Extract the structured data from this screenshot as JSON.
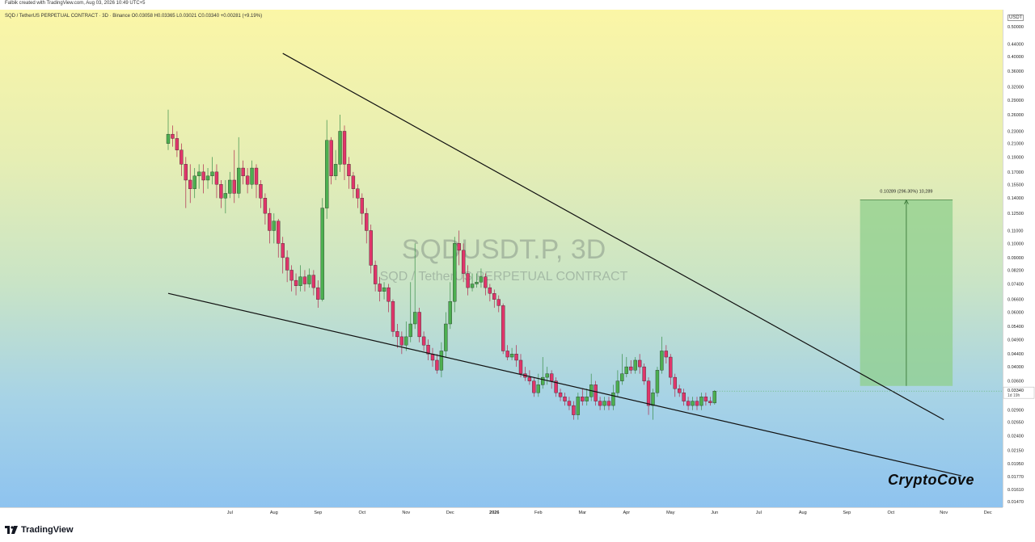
{
  "header": {
    "credit": "Falbik created with TradingView.com, Aug 03, 2026 10:49 UTC+5",
    "symbol_line": "SQD / TetherUS PERPETUAL CONTRACT · 3D · Binance  O0.03058  H0.03365  L0.03021  C0.03340  +0.00281 (+9.19%)"
  },
  "watermark": {
    "ticker": "SQDUSDT.P, 3D",
    "description": "SQD / TetherUS PERPETUAL CONTRACT"
  },
  "brand_text": "CryptoCove",
  "footer": {
    "logo_text": "TradingView"
  },
  "colors": {
    "up": "#26a69a",
    "down": "#e91e63",
    "up_body": "#4caf50",
    "down_body": "#e0356a",
    "target_box": "#8fcf8c"
  },
  "chart_data": {
    "type": "candlestick",
    "scale": "log",
    "currency": "USDT",
    "price_ticks": [
      0.5,
      0.44,
      0.4,
      0.36,
      0.32,
      0.29,
      0.26,
      0.23,
      0.21,
      0.19,
      0.17,
      0.155,
      0.14,
      0.125,
      0.11,
      0.1,
      0.09,
      0.082,
      0.074,
      0.066,
      0.06,
      0.054,
      0.049,
      0.044,
      0.04,
      0.036,
      0.0326,
      0.029,
      0.0265,
      0.024,
      0.0215,
      0.0195,
      0.0177,
      0.0161,
      0.0147
    ],
    "price_tick_labels": [
      "0.50000",
      "0.44000",
      "0.40000",
      "0.36000",
      "0.32000",
      "0.29000",
      "0.26000",
      "0.23000",
      "0.21000",
      "0.19000",
      "0.17000",
      "0.15500",
      "0.14000",
      "0.12500",
      "0.11000",
      "0.10000",
      "0.09000",
      "0.08200",
      "0.07400",
      "0.06600",
      "0.06000",
      "0.05400",
      "0.04900",
      "0.04400",
      "0.04000",
      "0.03600",
      "0.03260",
      "0.02900",
      "0.02650",
      "0.02400",
      "0.02150",
      "0.01950",
      "0.01770",
      "0.01610",
      "0.01470"
    ],
    "time_ticks": [
      {
        "label": "Jul",
        "i": 14
      },
      {
        "label": "Aug",
        "i": 24
      },
      {
        "label": "Sep",
        "i": 34
      },
      {
        "label": "Oct",
        "i": 44
      },
      {
        "label": "Nov",
        "i": 54
      },
      {
        "label": "Dec",
        "i": 64
      },
      {
        "label": "2026",
        "i": 74
      },
      {
        "label": "Feb",
        "i": 84
      },
      {
        "label": "Mar",
        "i": 94
      },
      {
        "label": "Apr",
        "i": 104
      },
      {
        "label": "May",
        "i": 114
      },
      {
        "label": "Jun",
        "i": 124
      },
      {
        "label": "Jul",
        "i": 134
      },
      {
        "label": "Aug",
        "i": 144
      },
      {
        "label": "Sep",
        "i": 154
      },
      {
        "label": "Oct",
        "i": 164
      },
      {
        "label": "Nov",
        "i": 176
      },
      {
        "label": "Dec",
        "i": 186
      }
    ],
    "last_price": {
      "label": "0.03340",
      "countdown": "1d 19h",
      "value": 0.0334
    },
    "candles": [
      [
        0.21,
        0.225,
        0.27,
        0.2
      ],
      [
        0.225,
        0.218,
        0.24,
        0.205
      ],
      [
        0.218,
        0.2,
        0.23,
        0.19
      ],
      [
        0.2,
        0.18,
        0.21,
        0.165
      ],
      [
        0.18,
        0.16,
        0.19,
        0.13
      ],
      [
        0.16,
        0.15,
        0.18,
        0.135
      ],
      [
        0.15,
        0.165,
        0.175,
        0.14
      ],
      [
        0.165,
        0.17,
        0.18,
        0.15
      ],
      [
        0.17,
        0.16,
        0.18,
        0.145
      ],
      [
        0.16,
        0.165,
        0.175,
        0.15
      ],
      [
        0.165,
        0.17,
        0.19,
        0.155
      ],
      [
        0.17,
        0.155,
        0.18,
        0.14
      ],
      [
        0.155,
        0.14,
        0.16,
        0.13
      ],
      [
        0.14,
        0.145,
        0.16,
        0.125
      ],
      [
        0.145,
        0.16,
        0.17,
        0.14
      ],
      [
        0.16,
        0.145,
        0.2,
        0.135
      ],
      [
        0.145,
        0.175,
        0.22,
        0.14
      ],
      [
        0.175,
        0.165,
        0.185,
        0.155
      ],
      [
        0.165,
        0.155,
        0.175,
        0.145
      ],
      [
        0.155,
        0.175,
        0.185,
        0.15
      ],
      [
        0.175,
        0.155,
        0.18,
        0.14
      ],
      [
        0.155,
        0.14,
        0.16,
        0.13
      ],
      [
        0.14,
        0.125,
        0.145,
        0.115
      ],
      [
        0.125,
        0.11,
        0.13,
        0.1
      ],
      [
        0.11,
        0.118,
        0.125,
        0.1
      ],
      [
        0.118,
        0.1,
        0.12,
        0.09
      ],
      [
        0.1,
        0.09,
        0.105,
        0.08
      ],
      [
        0.09,
        0.082,
        0.095,
        0.075
      ],
      [
        0.082,
        0.076,
        0.085,
        0.07
      ],
      [
        0.076,
        0.073,
        0.08,
        0.068
      ],
      [
        0.073,
        0.078,
        0.085,
        0.07
      ],
      [
        0.078,
        0.074,
        0.082,
        0.07
      ],
      [
        0.074,
        0.079,
        0.083,
        0.072
      ],
      [
        0.079,
        0.072,
        0.082,
        0.068
      ],
      [
        0.072,
        0.066,
        0.076,
        0.062
      ],
      [
        0.066,
        0.13,
        0.14,
        0.065
      ],
      [
        0.13,
        0.215,
        0.25,
        0.12
      ],
      [
        0.215,
        0.165,
        0.22,
        0.155
      ],
      [
        0.165,
        0.18,
        0.2,
        0.16
      ],
      [
        0.18,
        0.23,
        0.26,
        0.17
      ],
      [
        0.23,
        0.18,
        0.24,
        0.16
      ],
      [
        0.18,
        0.165,
        0.19,
        0.15
      ],
      [
        0.165,
        0.15,
        0.17,
        0.14
      ],
      [
        0.15,
        0.14,
        0.155,
        0.13
      ],
      [
        0.14,
        0.125,
        0.145,
        0.115
      ],
      [
        0.125,
        0.11,
        0.13,
        0.1
      ],
      [
        0.11,
        0.085,
        0.115,
        0.08
      ],
      [
        0.085,
        0.074,
        0.088,
        0.07
      ],
      [
        0.074,
        0.07,
        0.078,
        0.065
      ],
      [
        0.07,
        0.072,
        0.075,
        0.066
      ],
      [
        0.072,
        0.065,
        0.074,
        0.06
      ],
      [
        0.065,
        0.052,
        0.066,
        0.05
      ],
      [
        0.052,
        0.05,
        0.055,
        0.046
      ],
      [
        0.05,
        0.047,
        0.052,
        0.044
      ],
      [
        0.047,
        0.05,
        0.056,
        0.045
      ],
      [
        0.05,
        0.055,
        0.075,
        0.048
      ],
      [
        0.055,
        0.06,
        0.1,
        0.053
      ],
      [
        0.06,
        0.05,
        0.062,
        0.048
      ],
      [
        0.05,
        0.047,
        0.052,
        0.045
      ],
      [
        0.047,
        0.044,
        0.049,
        0.042
      ],
      [
        0.044,
        0.042,
        0.046,
        0.04
      ],
      [
        0.042,
        0.039,
        0.044,
        0.038
      ],
      [
        0.039,
        0.045,
        0.048,
        0.037
      ],
      [
        0.045,
        0.055,
        0.06,
        0.043
      ],
      [
        0.055,
        0.065,
        0.075,
        0.053
      ],
      [
        0.065,
        0.1,
        0.105,
        0.06
      ],
      [
        0.1,
        0.095,
        0.11,
        0.085
      ],
      [
        0.095,
        0.08,
        0.1,
        0.075
      ],
      [
        0.08,
        0.072,
        0.085,
        0.068
      ],
      [
        0.072,
        0.074,
        0.08,
        0.07
      ],
      [
        0.074,
        0.075,
        0.08,
        0.072
      ],
      [
        0.075,
        0.078,
        0.083,
        0.072
      ],
      [
        0.078,
        0.072,
        0.08,
        0.068
      ],
      [
        0.072,
        0.069,
        0.074,
        0.065
      ],
      [
        0.069,
        0.066,
        0.071,
        0.062
      ],
      [
        0.066,
        0.063,
        0.068,
        0.06
      ],
      [
        0.063,
        0.045,
        0.064,
        0.044
      ],
      [
        0.045,
        0.043,
        0.047,
        0.042
      ],
      [
        0.043,
        0.044,
        0.046,
        0.042
      ],
      [
        0.044,
        0.042,
        0.047,
        0.04
      ],
      [
        0.042,
        0.038,
        0.044,
        0.037
      ],
      [
        0.038,
        0.037,
        0.04,
        0.036
      ],
      [
        0.037,
        0.036,
        0.039,
        0.035
      ],
      [
        0.036,
        0.033,
        0.037,
        0.032
      ],
      [
        0.033,
        0.035,
        0.038,
        0.032
      ],
      [
        0.035,
        0.037,
        0.043,
        0.034
      ],
      [
        0.037,
        0.038,
        0.04,
        0.035
      ],
      [
        0.038,
        0.036,
        0.039,
        0.034
      ],
      [
        0.036,
        0.033,
        0.037,
        0.032
      ],
      [
        0.033,
        0.032,
        0.034,
        0.031
      ],
      [
        0.032,
        0.031,
        0.033,
        0.03
      ],
      [
        0.031,
        0.03,
        0.032,
        0.029
      ],
      [
        0.03,
        0.028,
        0.031,
        0.027
      ],
      [
        0.028,
        0.032,
        0.033,
        0.027
      ],
      [
        0.032,
        0.031,
        0.034,
        0.03
      ],
      [
        0.031,
        0.032,
        0.034,
        0.03
      ],
      [
        0.032,
        0.035,
        0.038,
        0.031
      ],
      [
        0.035,
        0.031,
        0.036,
        0.03
      ],
      [
        0.031,
        0.03,
        0.032,
        0.029
      ],
      [
        0.03,
        0.031,
        0.032,
        0.029
      ],
      [
        0.031,
        0.03,
        0.032,
        0.029
      ],
      [
        0.03,
        0.033,
        0.035,
        0.029
      ],
      [
        0.033,
        0.036,
        0.039,
        0.032
      ],
      [
        0.036,
        0.038,
        0.044,
        0.035
      ],
      [
        0.038,
        0.04,
        0.043,
        0.037
      ],
      [
        0.04,
        0.039,
        0.042,
        0.038
      ],
      [
        0.039,
        0.042,
        0.043,
        0.038
      ],
      [
        0.042,
        0.04,
        0.044,
        0.038
      ],
      [
        0.04,
        0.036,
        0.041,
        0.035
      ],
      [
        0.036,
        0.03,
        0.037,
        0.028
      ],
      [
        0.03,
        0.033,
        0.034,
        0.027
      ],
      [
        0.033,
        0.039,
        0.04,
        0.032
      ],
      [
        0.039,
        0.045,
        0.05,
        0.038
      ],
      [
        0.045,
        0.043,
        0.047,
        0.041
      ],
      [
        0.043,
        0.037,
        0.044,
        0.035
      ],
      [
        0.037,
        0.034,
        0.038,
        0.032
      ],
      [
        0.034,
        0.033,
        0.035,
        0.032
      ],
      [
        0.033,
        0.031,
        0.034,
        0.03
      ],
      [
        0.031,
        0.03,
        0.032,
        0.029
      ],
      [
        0.03,
        0.031,
        0.032,
        0.029
      ],
      [
        0.031,
        0.03,
        0.032,
        0.029
      ],
      [
        0.03,
        0.032,
        0.033,
        0.029
      ],
      [
        0.032,
        0.031,
        0.033,
        0.03
      ],
      [
        0.031,
        0.0306,
        0.032,
        0.03
      ],
      [
        0.03058,
        0.0334,
        0.03365,
        0.03021
      ]
    ],
    "trendlines": [
      {
        "name": "upper",
        "from": {
          "i": 26,
          "p": 0.41
        },
        "to": {
          "i": 176,
          "p": 0.027
        }
      },
      {
        "name": "lower",
        "from": {
          "i": 0,
          "p": 0.069
        },
        "to": {
          "i": 180,
          "p": 0.0178
        }
      }
    ],
    "target_box": {
      "label": "0.10289 (296.30%) 10,289",
      "from_i": 157,
      "to_i": 178,
      "bottom": 0.0347,
      "top": 0.138
    }
  }
}
